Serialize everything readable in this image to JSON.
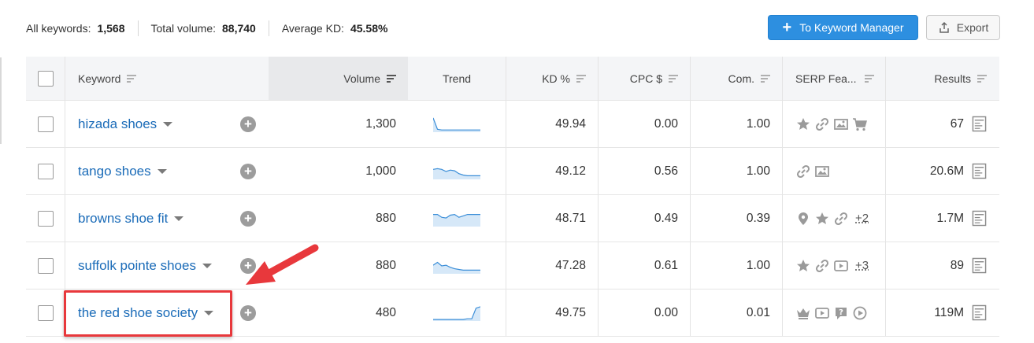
{
  "summary": {
    "all_keywords_label": "All keywords:",
    "all_keywords_value": "1,568",
    "total_volume_label": "Total volume:",
    "total_volume_value": "88,740",
    "avg_kd_label": "Average KD:",
    "avg_kd_value": "45.58%"
  },
  "toolbar": {
    "keyword_manager_label": "To Keyword Manager",
    "export_label": "Export"
  },
  "columns": {
    "keyword": "Keyword",
    "volume": "Volume",
    "trend": "Trend",
    "kd": "KD %",
    "cpc": "CPC $",
    "com": "Com.",
    "serp": "SERP Fea...",
    "results": "Results"
  },
  "rows": [
    {
      "keyword": "hizada shoes",
      "volume": "1,300",
      "kd": "49.94",
      "cpc": "0.00",
      "com": "1.00",
      "serp": [
        "star-icon",
        "link-icon",
        "image-icon",
        "cart-icon"
      ],
      "serp_more": "",
      "results": "67",
      "trend": [
        0.95,
        0.15,
        0.1,
        0.1,
        0.1,
        0.1,
        0.1,
        0.1,
        0.1,
        0.1,
        0.1,
        0.1
      ]
    },
    {
      "keyword": "tango shoes",
      "volume": "1,000",
      "kd": "49.12",
      "cpc": "0.56",
      "com": "1.00",
      "serp": [
        "link-icon",
        "image-icon"
      ],
      "serp_more": "",
      "results": "20.6M",
      "trend": [
        0.65,
        0.7,
        0.65,
        0.5,
        0.6,
        0.55,
        0.35,
        0.25,
        0.2,
        0.2,
        0.2,
        0.2
      ]
    },
    {
      "keyword": "browns shoe fit",
      "volume": "880",
      "kd": "48.71",
      "cpc": "0.49",
      "com": "0.39",
      "serp": [
        "pin-icon",
        "star-icon",
        "link-icon"
      ],
      "serp_more": "+2",
      "results": "1.7M",
      "trend": [
        0.8,
        0.8,
        0.6,
        0.55,
        0.75,
        0.8,
        0.6,
        0.7,
        0.8,
        0.8,
        0.8,
        0.8
      ]
    },
    {
      "keyword": "suffolk pointe shoes",
      "volume": "880",
      "kd": "47.28",
      "cpc": "0.61",
      "com": "1.00",
      "serp": [
        "star-icon",
        "link-icon",
        "video-icon"
      ],
      "serp_more": "+3",
      "results": "89",
      "trend": [
        0.55,
        0.75,
        0.5,
        0.55,
        0.4,
        0.3,
        0.25,
        0.2,
        0.2,
        0.2,
        0.2,
        0.2
      ]
    },
    {
      "keyword": "the red shoe society",
      "volume": "480",
      "kd": "49.75",
      "cpc": "0.00",
      "com": "0.01",
      "serp": [
        "crown-icon",
        "video-icon",
        "question-icon",
        "play-icon"
      ],
      "serp_more": "",
      "results": "119M",
      "trend": [
        0.05,
        0.05,
        0.05,
        0.05,
        0.05,
        0.05,
        0.05,
        0.05,
        0.1,
        0.1,
        0.85,
        0.95
      ]
    }
  ]
}
